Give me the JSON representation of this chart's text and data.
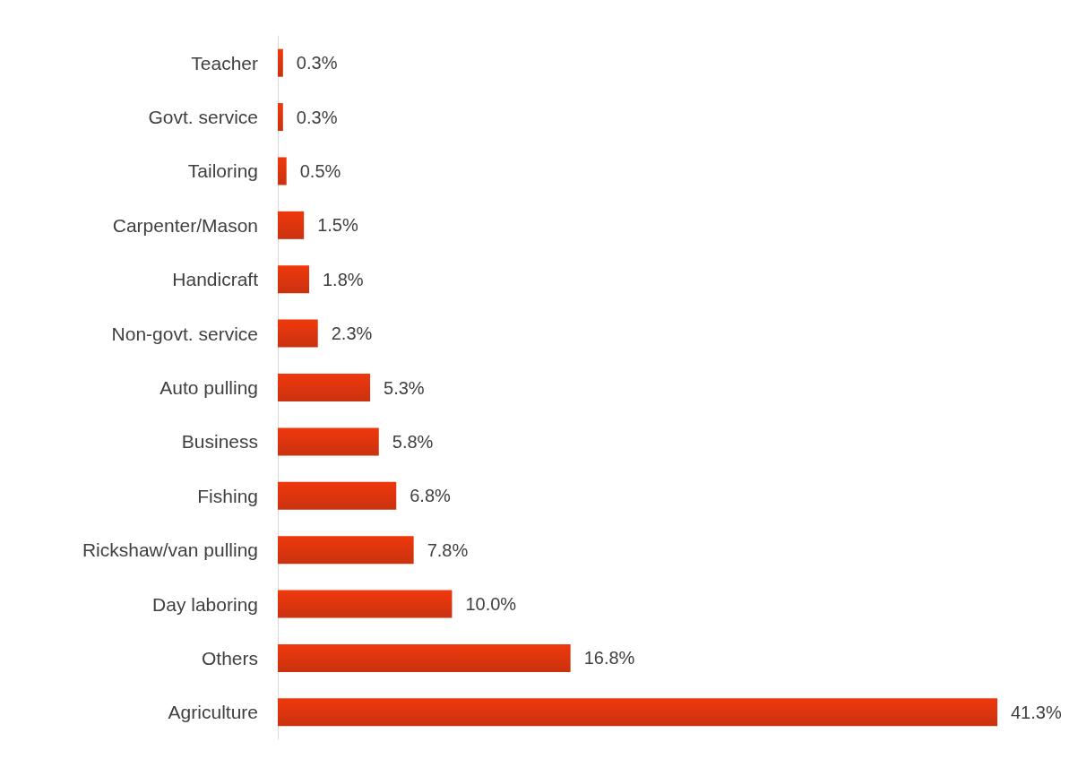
{
  "chart_data": {
    "type": "bar",
    "orientation": "horizontal",
    "categories": [
      "Teacher",
      "Govt. service",
      "Tailoring",
      "Carpenter/Mason",
      "Handicraft",
      "Non-govt. service",
      "Auto pulling",
      "Business",
      "Fishing",
      "Rickshaw/van pulling",
      "Day laboring",
      "Others",
      "Agriculture"
    ],
    "values": [
      0.3,
      0.3,
      0.5,
      1.5,
      1.8,
      2.3,
      5.3,
      5.8,
      6.8,
      7.8,
      10.0,
      16.8,
      41.3
    ],
    "value_labels": [
      "0.3%",
      "0.3%",
      "0.5%",
      "1.5%",
      "1.8%",
      "2.3%",
      "5.3%",
      "5.8%",
      "6.8%",
      "7.8%",
      "10.0%",
      "16.8%",
      "41.3%"
    ],
    "color": "#f0380c"
  }
}
